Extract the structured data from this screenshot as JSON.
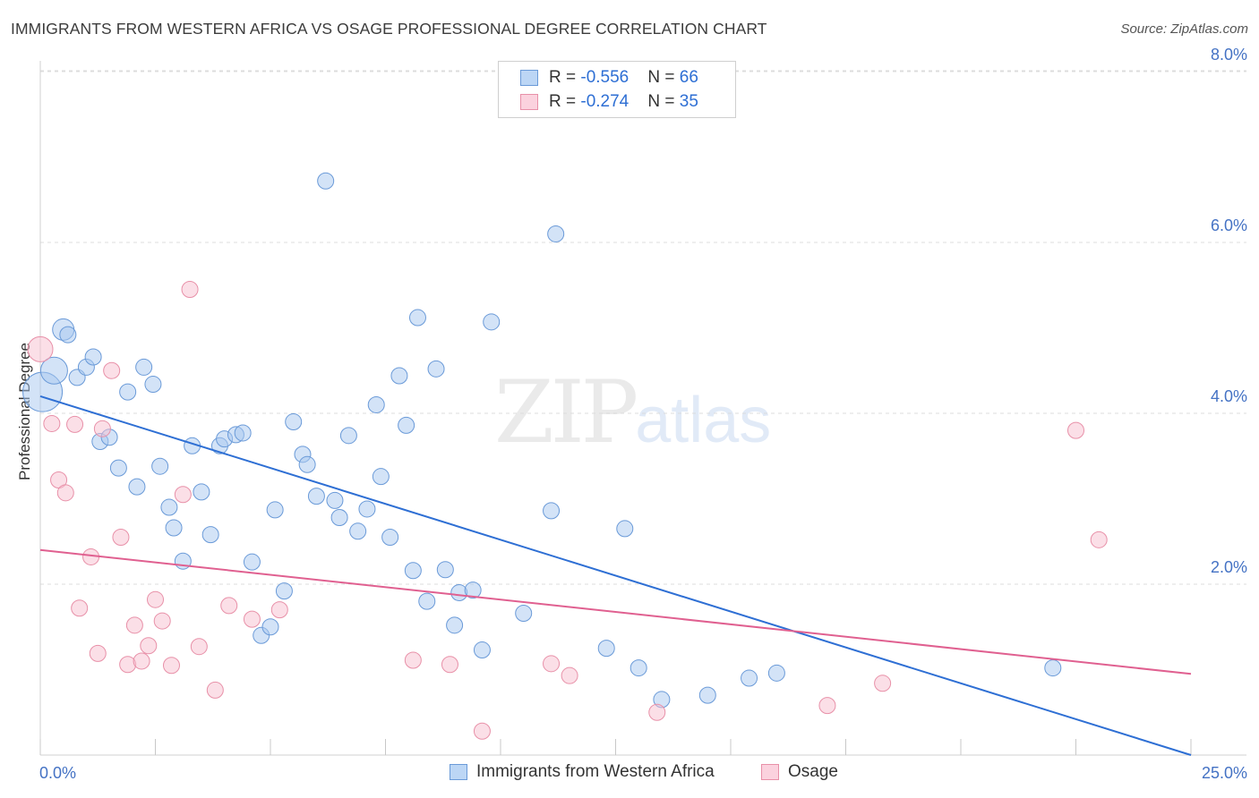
{
  "title": "IMMIGRANTS FROM WESTERN AFRICA VS OSAGE PROFESSIONAL DEGREE CORRELATION CHART",
  "source": "Source: ZipAtlas.com",
  "watermark": {
    "zip": "ZIP",
    "atlas": "atlas"
  },
  "legend": {
    "rows": [
      {
        "r_label": "R = ",
        "r_value": "-0.556",
        "n_label": "N = ",
        "n_value": "66",
        "color": "#a8c8f0",
        "stroke": "#6a9ad8"
      },
      {
        "r_label": "R = ",
        "r_value": "-0.274",
        "n_label": "N = ",
        "n_value": "35",
        "color": "#f8c0d0",
        "stroke": "#e890a8"
      }
    ]
  },
  "bottom_legend": [
    {
      "label": "Immigrants from Western Africa",
      "color": "#a8c8f0",
      "stroke": "#6a9ad8"
    },
    {
      "label": "Osage",
      "color": "#f8c0d0",
      "stroke": "#e890a8"
    }
  ],
  "chart_data": {
    "type": "scatter",
    "title": "IMMIGRANTS FROM WESTERN AFRICA VS OSAGE PROFESSIONAL DEGREE CORRELATION CHART",
    "xlabel": "",
    "ylabel": "Professional Degree",
    "xlim": [
      0,
      25
    ],
    "ylim": [
      0,
      8.2
    ],
    "x_ticks": [
      "0.0%",
      "25.0%"
    ],
    "y_ticks": [
      {
        "value": 2,
        "label": "2.0%"
      },
      {
        "value": 4,
        "label": "4.0%"
      },
      {
        "value": 6,
        "label": "6.0%"
      },
      {
        "value": 8,
        "label": "8.0%"
      }
    ],
    "grid": "horizontal dashed",
    "series": [
      {
        "name": "Immigrants from Western Africa",
        "color": "#a8c8f0",
        "stroke": "#6a9ad8",
        "line_color": "#2e6fd4",
        "trend": {
          "x": [
            0,
            25
          ],
          "y": [
            4.2,
            0.0
          ]
        },
        "points": [
          [
            0.05,
            4.25
          ],
          [
            0.3,
            4.5
          ],
          [
            0.5,
            4.98
          ],
          [
            0.6,
            4.92
          ],
          [
            0.8,
            4.42
          ],
          [
            1.0,
            4.54
          ],
          [
            1.15,
            4.66
          ],
          [
            1.3,
            3.67
          ],
          [
            1.5,
            3.72
          ],
          [
            1.7,
            3.36
          ],
          [
            1.9,
            4.25
          ],
          [
            2.1,
            3.14
          ],
          [
            2.25,
            4.54
          ],
          [
            2.45,
            4.34
          ],
          [
            2.6,
            3.38
          ],
          [
            2.8,
            2.9
          ],
          [
            2.9,
            2.66
          ],
          [
            3.1,
            2.27
          ],
          [
            3.3,
            3.62
          ],
          [
            3.5,
            3.08
          ],
          [
            3.7,
            2.58
          ],
          [
            3.9,
            3.62
          ],
          [
            4.0,
            3.7
          ],
          [
            4.25,
            3.75
          ],
          [
            4.4,
            3.77
          ],
          [
            4.6,
            2.26
          ],
          [
            4.8,
            1.4
          ],
          [
            5.0,
            1.5
          ],
          [
            5.1,
            2.87
          ],
          [
            5.3,
            1.92
          ],
          [
            5.5,
            3.9
          ],
          [
            5.7,
            3.52
          ],
          [
            5.8,
            3.4
          ],
          [
            6.0,
            3.03
          ],
          [
            6.2,
            6.72
          ],
          [
            6.4,
            2.98
          ],
          [
            6.5,
            2.78
          ],
          [
            6.7,
            3.74
          ],
          [
            6.9,
            2.62
          ],
          [
            7.1,
            2.88
          ],
          [
            7.3,
            4.1
          ],
          [
            7.4,
            3.26
          ],
          [
            7.6,
            2.55
          ],
          [
            7.8,
            4.44
          ],
          [
            7.95,
            3.86
          ],
          [
            8.1,
            2.16
          ],
          [
            8.2,
            5.12
          ],
          [
            8.4,
            1.8
          ],
          [
            8.6,
            4.52
          ],
          [
            8.8,
            2.17
          ],
          [
            9.0,
            1.52
          ],
          [
            9.1,
            1.9
          ],
          [
            9.4,
            1.93
          ],
          [
            9.6,
            1.23
          ],
          [
            9.8,
            5.07
          ],
          [
            10.5,
            1.66
          ],
          [
            11.1,
            2.86
          ],
          [
            11.2,
            6.1
          ],
          [
            12.3,
            1.25
          ],
          [
            12.7,
            2.65
          ],
          [
            13.0,
            1.02
          ],
          [
            13.5,
            0.65
          ],
          [
            14.5,
            0.7
          ],
          [
            15.4,
            0.9
          ],
          [
            16.0,
            0.96
          ],
          [
            22.0,
            1.02
          ]
        ]
      },
      {
        "name": "Osage",
        "color": "#f8c0d0",
        "stroke": "#e890a8",
        "line_color": "#e06090",
        "trend": {
          "x": [
            0,
            25
          ],
          "y": [
            2.4,
            0.95
          ]
        },
        "points": [
          [
            0.0,
            4.75
          ],
          [
            0.25,
            3.88
          ],
          [
            0.4,
            3.22
          ],
          [
            0.55,
            3.07
          ],
          [
            0.75,
            3.87
          ],
          [
            0.85,
            1.72
          ],
          [
            1.1,
            2.32
          ],
          [
            1.25,
            1.19
          ],
          [
            1.35,
            3.82
          ],
          [
            1.55,
            4.5
          ],
          [
            1.75,
            2.55
          ],
          [
            1.9,
            1.06
          ],
          [
            2.05,
            1.52
          ],
          [
            2.2,
            1.1
          ],
          [
            2.35,
            1.28
          ],
          [
            2.5,
            1.82
          ],
          [
            2.65,
            1.57
          ],
          [
            2.85,
            1.05
          ],
          [
            3.1,
            3.05
          ],
          [
            3.25,
            5.45
          ],
          [
            3.45,
            1.27
          ],
          [
            3.8,
            0.76
          ],
          [
            4.1,
            1.75
          ],
          [
            4.6,
            1.59
          ],
          [
            5.2,
            1.7
          ],
          [
            8.1,
            1.11
          ],
          [
            8.9,
            1.06
          ],
          [
            9.6,
            0.28
          ],
          [
            11.1,
            1.07
          ],
          [
            11.5,
            0.93
          ],
          [
            13.4,
            0.5
          ],
          [
            17.1,
            0.58
          ],
          [
            18.3,
            0.84
          ],
          [
            22.5,
            3.8
          ],
          [
            23.0,
            2.52
          ]
        ]
      }
    ]
  }
}
